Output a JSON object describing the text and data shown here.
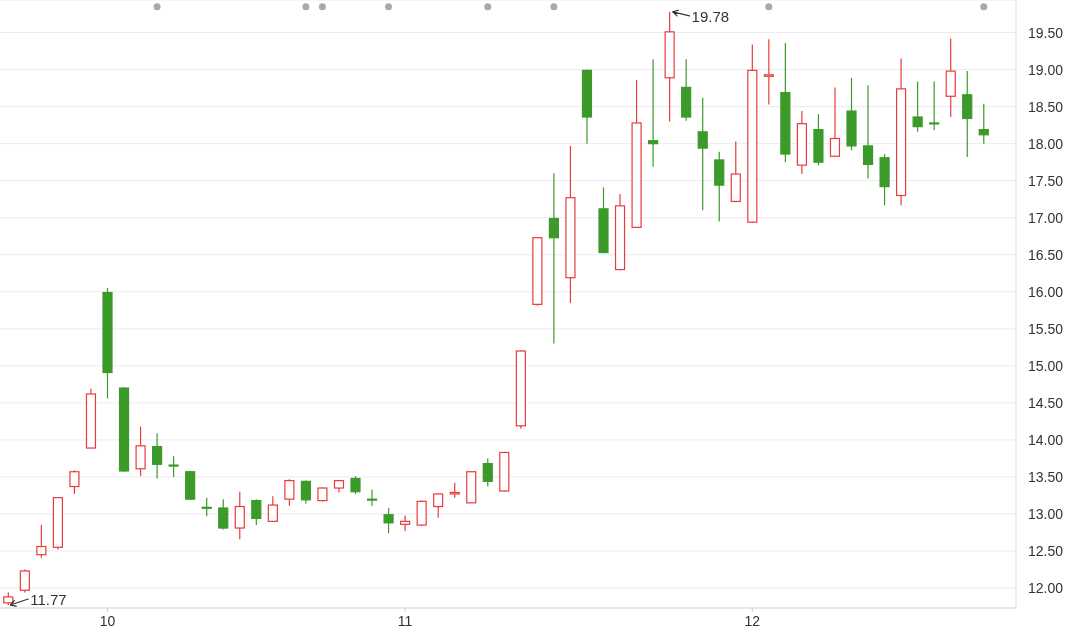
{
  "chart_data": {
    "type": "candlestick",
    "categories": [
      null,
      null,
      null,
      null,
      null,
      null,
      "10",
      null,
      null,
      null,
      null,
      null,
      null,
      null,
      null,
      null,
      null,
      null,
      null,
      null,
      null,
      null,
      null,
      null,
      "11",
      null,
      null,
      null,
      null,
      null,
      null,
      null,
      null,
      null,
      null,
      null,
      null,
      null,
      null,
      null,
      null,
      null,
      null,
      null,
      null,
      "12",
      null,
      null,
      null,
      null,
      null,
      null,
      null,
      null,
      null,
      null,
      null,
      null,
      null,
      null
    ],
    "ohlc": [
      [
        11.8,
        11.94,
        11.77,
        11.88
      ],
      [
        11.97,
        12.25,
        11.94,
        12.23
      ],
      [
        12.45,
        12.85,
        12.41,
        12.56
      ],
      [
        12.55,
        13.23,
        12.52,
        13.22
      ],
      [
        13.37,
        13.59,
        13.27,
        13.57
      ],
      [
        13.89,
        14.69,
        13.89,
        14.62
      ],
      [
        15.99,
        16.05,
        14.56,
        14.91
      ],
      [
        14.7,
        14.71,
        13.57,
        13.58
      ],
      [
        13.61,
        14.18,
        13.51,
        13.92
      ],
      [
        13.91,
        14.09,
        13.48,
        13.67
      ],
      [
        13.66,
        13.78,
        13.5,
        13.65
      ],
      [
        13.57,
        13.58,
        13.19,
        13.2
      ],
      [
        13.09,
        13.22,
        12.97,
        13.08
      ],
      [
        13.08,
        13.2,
        12.79,
        12.81
      ],
      [
        12.81,
        13.3,
        12.66,
        13.1
      ],
      [
        13.18,
        13.2,
        12.85,
        12.94
      ],
      [
        12.9,
        13.24,
        12.89,
        13.12
      ],
      [
        13.2,
        13.47,
        13.11,
        13.45
      ],
      [
        13.44,
        13.45,
        13.14,
        13.19
      ],
      [
        13.18,
        13.36,
        13.17,
        13.35
      ],
      [
        13.35,
        13.46,
        13.29,
        13.45
      ],
      [
        13.48,
        13.51,
        13.27,
        13.3
      ],
      [
        13.2,
        13.33,
        13.11,
        13.19
      ],
      [
        12.99,
        13.08,
        12.74,
        12.88
      ],
      [
        12.86,
        12.98,
        12.77,
        12.9
      ],
      [
        12.85,
        13.18,
        12.84,
        13.17
      ],
      [
        13.1,
        13.28,
        12.95,
        13.27
      ],
      [
        13.27,
        13.42,
        13.22,
        13.29
      ],
      [
        13.15,
        13.58,
        13.15,
        13.57
      ],
      [
        13.68,
        13.75,
        13.37,
        13.44
      ],
      [
        13.31,
        13.84,
        13.3,
        13.83
      ],
      [
        14.19,
        15.21,
        14.15,
        15.2
      ],
      [
        15.83,
        16.74,
        15.81,
        16.73
      ],
      [
        16.99,
        17.6,
        15.3,
        16.73
      ],
      [
        16.19,
        17.97,
        15.85,
        17.27
      ],
      [
        18.99,
        19.0,
        18.0,
        18.36
      ],
      [
        17.12,
        17.41,
        16.52,
        16.53
      ],
      [
        16.3,
        17.32,
        16.29,
        17.16
      ],
      [
        16.87,
        18.86,
        16.86,
        18.28
      ],
      [
        18.04,
        19.14,
        17.69,
        18.0
      ],
      [
        18.89,
        19.78,
        18.3,
        19.51
      ],
      [
        18.76,
        19.14,
        18.31,
        18.36
      ],
      [
        18.16,
        18.62,
        17.1,
        17.94
      ],
      [
        17.78,
        17.89,
        16.95,
        17.44
      ],
      [
        17.22,
        18.03,
        17.21,
        17.59
      ],
      [
        16.94,
        19.34,
        16.93,
        18.99
      ],
      [
        18.91,
        19.41,
        18.53,
        18.93
      ],
      [
        18.69,
        19.36,
        17.75,
        17.86
      ],
      [
        17.71,
        18.44,
        17.59,
        18.27
      ],
      [
        18.19,
        18.4,
        17.71,
        17.75
      ],
      [
        17.83,
        18.76,
        17.82,
        18.07
      ],
      [
        18.44,
        18.89,
        17.91,
        17.97
      ],
      [
        17.97,
        18.79,
        17.53,
        17.72
      ],
      [
        17.81,
        17.86,
        17.17,
        17.42
      ],
      [
        17.3,
        19.15,
        17.17,
        18.74
      ],
      [
        18.36,
        18.84,
        18.16,
        18.23
      ],
      [
        18.28,
        18.84,
        18.18,
        18.27
      ],
      [
        18.64,
        19.42,
        18.36,
        18.98
      ],
      [
        18.66,
        18.98,
        17.82,
        18.34
      ],
      [
        18.19,
        18.54,
        18.0,
        18.12
      ]
    ],
    "colors": [
      "#e93b3b",
      "#e93b3b",
      "#e93b3b",
      "#e93b3b",
      "#e93b3b",
      "#e93b3b",
      "#3c9a2a",
      "#3c9a2a",
      "#e93b3b",
      "#3c9a2a",
      "#3c9a2a",
      "#3c9a2a",
      "#3c9a2a",
      "#3c9a2a",
      "#e93b3b",
      "#3c9a2a",
      "#e93b3b",
      "#e93b3b",
      "#3c9a2a",
      "#e93b3b",
      "#e93b3b",
      "#3c9a2a",
      "#3c9a2a",
      "#3c9a2a",
      "#e93b3b",
      "#e93b3b",
      "#e93b3b",
      "#e93b3b",
      "#e93b3b",
      "#3c9a2a",
      "#e93b3b",
      "#e93b3b",
      "#e93b3b",
      "#3c9a2a",
      "#e93b3b",
      "#3c9a2a",
      "#3c9a2a",
      "#e93b3b",
      "#e93b3b",
      "#3c9a2a",
      "#e93b3b",
      "#3c9a2a",
      "#3c9a2a",
      "#3c9a2a",
      "#e93b3b",
      "#e93b3b",
      "#e93b3b",
      "#3c9a2a",
      "#e93b3b",
      "#3c9a2a",
      "#e93b3b",
      "#3c9a2a",
      "#3c9a2a",
      "#3c9a2a",
      "#e93b3b",
      "#3c9a2a",
      "#3c9a2a",
      "#e93b3b",
      "#3c9a2a",
      "#3c9a2a"
    ],
    "series": [
      {
        "type": "scatter",
        "color": "#a9a9a9",
        "marker": "circle",
        "values": [
          null,
          null,
          null,
          null,
          null,
          null,
          null,
          null,
          null,
          19.85,
          null,
          null,
          null,
          null,
          null,
          null,
          null,
          null,
          19.85,
          19.85,
          null,
          null,
          null,
          19.85,
          null,
          null,
          null,
          null,
          null,
          19.85,
          null,
          null,
          null,
          19.85,
          null,
          null,
          null,
          null,
          null,
          null,
          null,
          null,
          null,
          null,
          null,
          null,
          19.85,
          null,
          null,
          null,
          null,
          null,
          null,
          null,
          null,
          null,
          null,
          null,
          null,
          19.85
        ]
      }
    ],
    "ylim": [
      11.73,
      19.94
    ],
    "yticks": [
      {
        "value": 12,
        "label": "12.00"
      },
      {
        "value": 12.5,
        "label": "12.50"
      },
      {
        "value": 13,
        "label": "13.00"
      },
      {
        "value": 13.5,
        "label": "13.50"
      },
      {
        "value": 14,
        "label": "14.00"
      },
      {
        "value": 14.5,
        "label": "14.50"
      },
      {
        "value": 15,
        "label": "15.00"
      },
      {
        "value": 15.5,
        "label": "15.50"
      },
      {
        "value": 16,
        "label": "16.00"
      },
      {
        "value": 16.5,
        "label": "16.50"
      },
      {
        "value": 17,
        "label": "17.00"
      },
      {
        "value": 17.5,
        "label": "17.50"
      },
      {
        "value": 18,
        "label": "18.00"
      },
      {
        "value": 18.5,
        "label": "18.50"
      },
      {
        "value": 19,
        "label": "19.00"
      },
      {
        "value": 19.5,
        "label": "19.50"
      }
    ],
    "grid": "y",
    "annotations": [
      "19.78",
      "11.77"
    ]
  }
}
